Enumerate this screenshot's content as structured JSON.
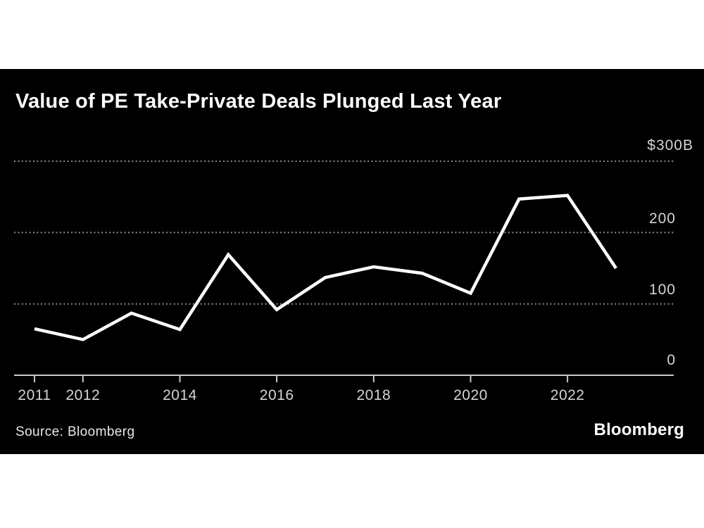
{
  "page": {
    "background": "#ffffff",
    "card_background": "#000000"
  },
  "header": {
    "title": "Value of PE Take-Private Deals Plunged Last Year"
  },
  "chart_data": {
    "type": "line",
    "title": "Value of PE Take-Private Deals Plunged Last Year",
    "unit": "billions USD",
    "x": [
      2011,
      2012,
      2013,
      2014,
      2015,
      2016,
      2017,
      2018,
      2019,
      2020,
      2021,
      2022,
      2023
    ],
    "values": [
      65,
      50,
      87,
      64,
      169,
      92,
      137,
      152,
      143,
      115,
      247,
      252,
      150
    ],
    "x_ticks": [
      "2011",
      "2012",
      "2014",
      "2016",
      "2018",
      "2020",
      "2022"
    ],
    "y_ticks": [
      "$300B",
      "200",
      "100",
      "0"
    ],
    "y_tick_values": [
      300,
      200,
      100,
      0
    ],
    "ylim": [
      0,
      300
    ],
    "grid": "horizontal-dotted",
    "legend": "none",
    "line_color": "#ffffff",
    "gridline_color": "#8d8d8d",
    "axis_color": "#c9c9c9",
    "label_color": "#d4d4d4"
  },
  "footer": {
    "source": "Source:  Bloomberg",
    "logo": "Bloomberg"
  }
}
